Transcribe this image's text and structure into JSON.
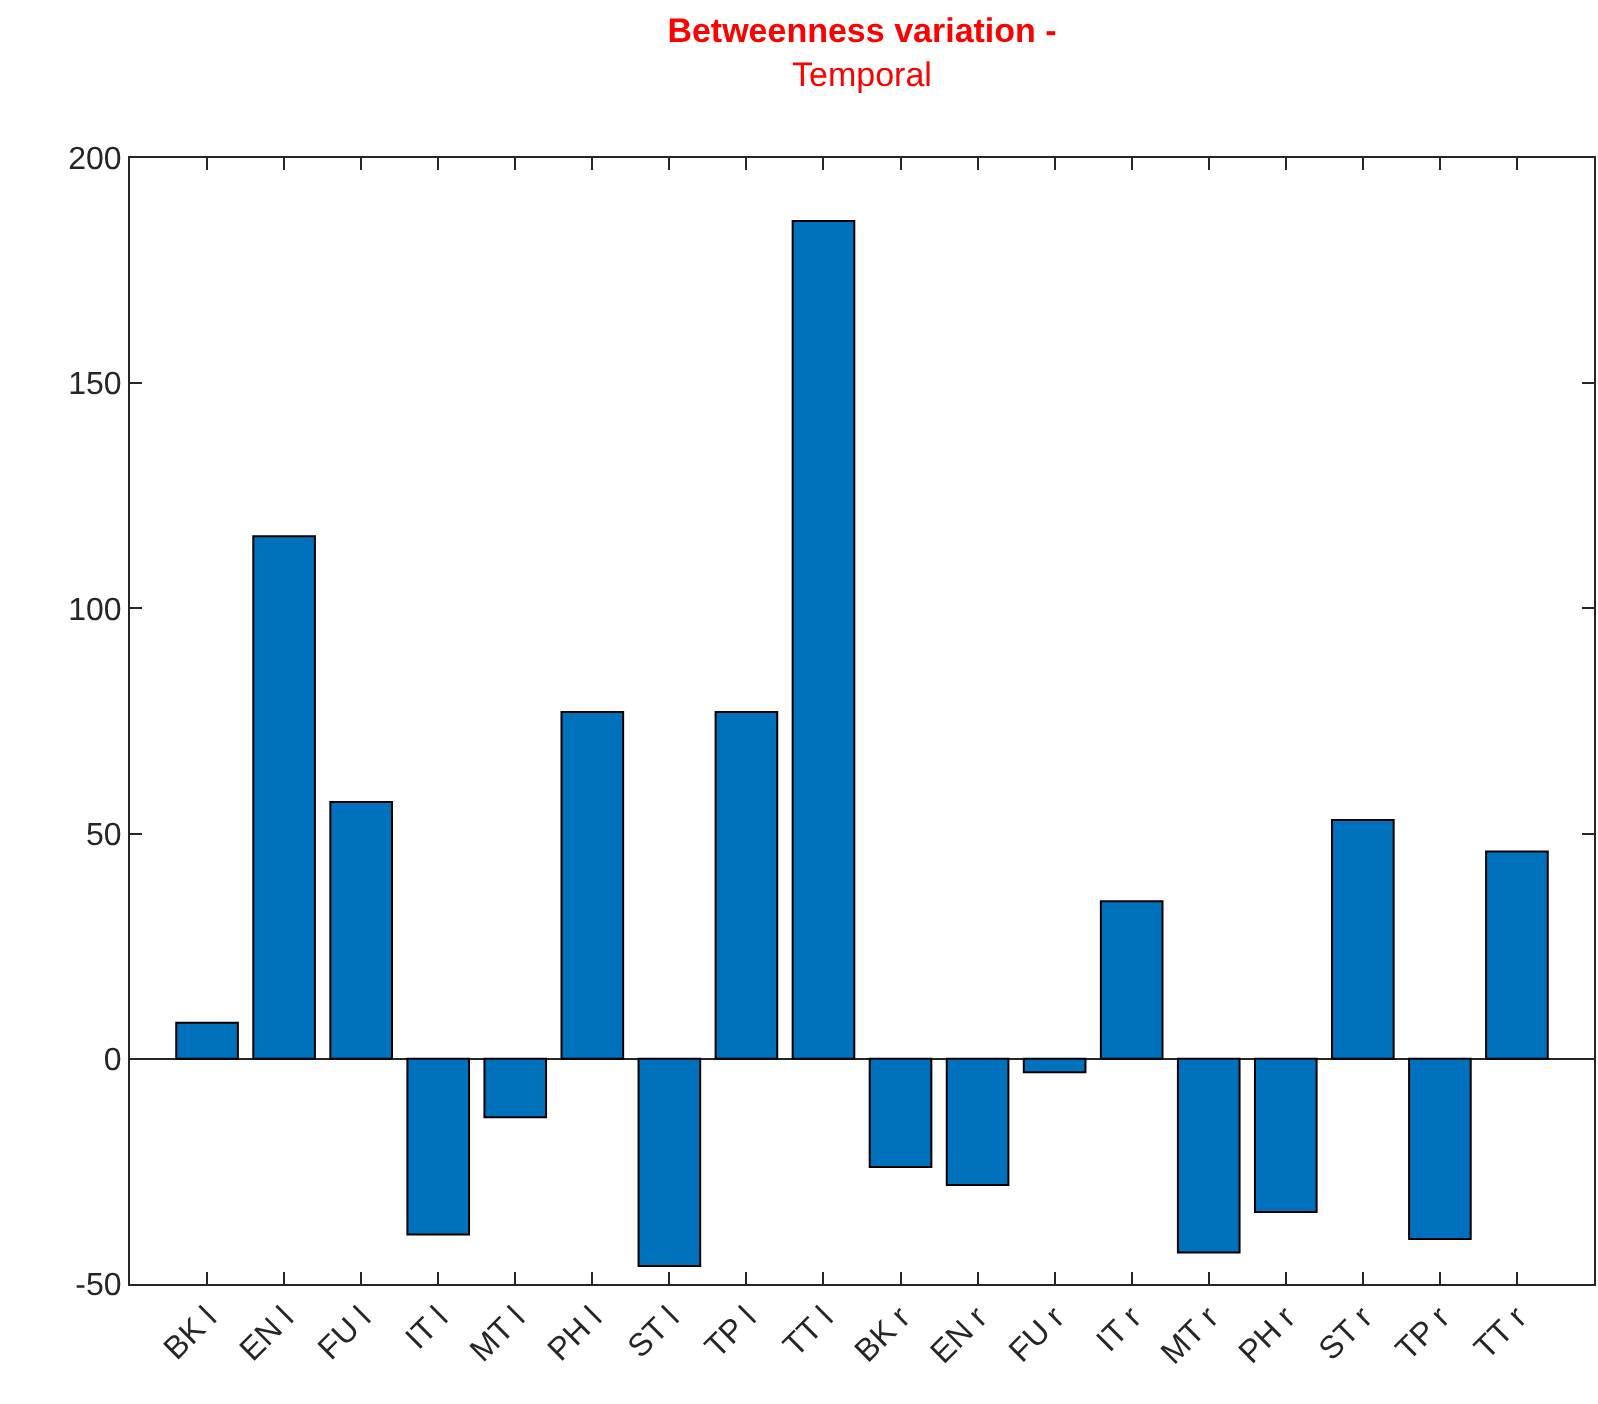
{
  "chart_data": {
    "type": "bar",
    "title": "Betweenness variation -",
    "subtitle": "Temporal",
    "categories": [
      "BK l",
      "EN l",
      "FU l",
      "IT l",
      "MT l",
      "PH l",
      "ST l",
      "TP l",
      "TT l",
      "BK r",
      "EN r",
      "FU r",
      "IT r",
      "MT r",
      "PH r",
      "ST r",
      "TP r",
      "TT r"
    ],
    "values": [
      8,
      116,
      57,
      -39,
      -13,
      77,
      -46,
      77,
      186,
      -24,
      -28,
      -3,
      35,
      -43,
      -34,
      53,
      -40,
      46
    ],
    "color": "#0072bd",
    "ylim": [
      -50,
      200
    ],
    "yticks": [
      -50,
      0,
      50,
      100,
      150,
      200
    ]
  }
}
